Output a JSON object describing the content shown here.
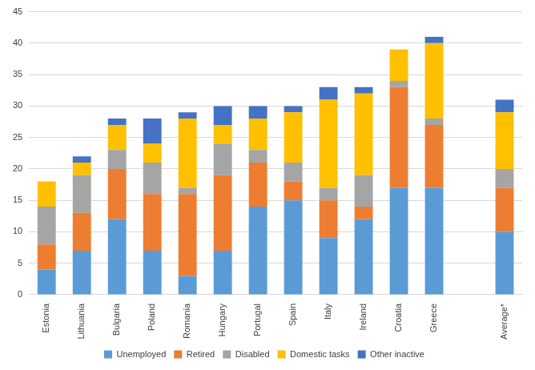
{
  "chart_data": {
    "type": "bar",
    "stacked": true,
    "grid": true,
    "legend": "bottom",
    "categories": [
      "Estonia",
      "Lithuania",
      "Bulgaria",
      "Poland",
      "Romania",
      "Hungary",
      "Portugal",
      "Spain",
      "Italy",
      "Ireland",
      "Croatia",
      "Greece",
      null,
      "Average*"
    ],
    "series": [
      {
        "name": "Unemployed",
        "color": "#5b9bd5",
        "values": [
          4,
          7,
          12,
          7,
          3,
          7,
          14,
          15,
          9,
          12,
          17,
          17,
          null,
          10
        ]
      },
      {
        "name": "Retired",
        "color": "#ed7d31",
        "values": [
          4,
          6,
          8,
          9,
          13,
          12,
          7,
          3,
          6,
          2,
          16,
          10,
          null,
          7
        ]
      },
      {
        "name": "Disabled",
        "color": "#a5a5a5",
        "values": [
          6,
          6,
          3,
          5,
          1,
          5,
          2,
          3,
          2,
          5,
          1,
          1,
          null,
          3
        ]
      },
      {
        "name": "Domestic tasks",
        "color": "#ffc000",
        "values": [
          4,
          2,
          4,
          3,
          11,
          3,
          5,
          8,
          14,
          13,
          5,
          12,
          null,
          9
        ]
      },
      {
        "name": "Other inactive",
        "color": "#4472c4",
        "values": [
          0,
          1,
          1,
          4,
          1,
          3,
          2,
          1,
          2,
          1,
          0,
          1,
          null,
          2
        ]
      }
    ],
    "ylim": [
      0,
      45
    ],
    "yticks": [
      0,
      5,
      10,
      15,
      20,
      25,
      30,
      35,
      40,
      45
    ]
  }
}
